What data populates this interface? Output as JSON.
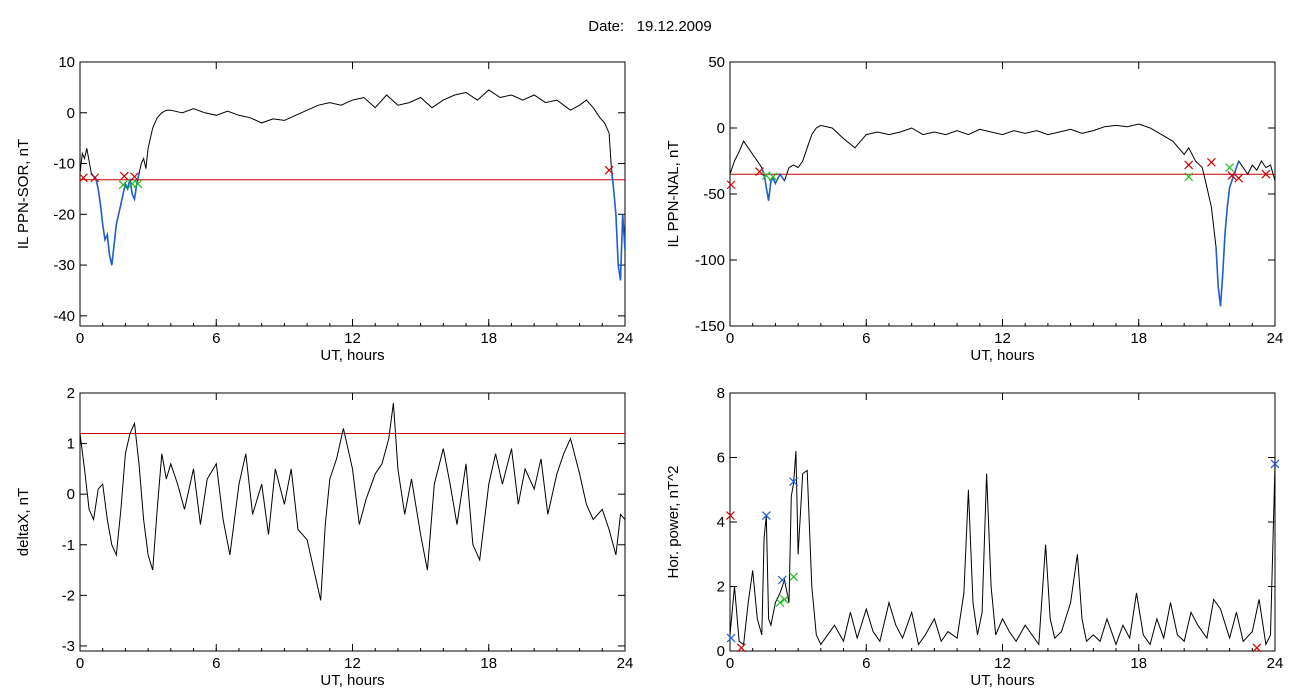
{
  "header": {
    "date_label": "Date:",
    "date_value": "19.12.2009"
  },
  "colors": {
    "trace": "#000000",
    "threshold": "#cc0000",
    "highlight": "#1f5fd0",
    "marker_red": "#cc0000",
    "marker_green": "#22bb22",
    "marker_blue": "#1f5fd0"
  },
  "chart_data": [
    {
      "id": "ppn_sor",
      "type": "line",
      "title": "",
      "xlabel": "UT, hours",
      "ylabel": "IL PPN-SOR, nT",
      "xlim": [
        0,
        24
      ],
      "ylim": [
        -42,
        10
      ],
      "xticks": [
        0,
        6,
        12,
        18,
        24
      ],
      "yticks": [
        10,
        0,
        -10,
        -20,
        -30,
        -40
      ],
      "threshold": -13.2,
      "grid": false,
      "series": [
        {
          "x": [
            0,
            0.1,
            0.2,
            0.3,
            0.5,
            0.7,
            0.8,
            0.9,
            1.0,
            1.1,
            1.2,
            1.3,
            1.4,
            1.5,
            1.6,
            1.7,
            1.8,
            1.9,
            2.0,
            2.1,
            2.2,
            2.3,
            2.4,
            2.5,
            2.6,
            2.7,
            2.8,
            2.9,
            3.0,
            3.2,
            3.4,
            3.6,
            3.8,
            4.0,
            4.5,
            5.0,
            5.5,
            6.0,
            6.5,
            7.0,
            7.5,
            8.0,
            8.5,
            9.0,
            9.5,
            10.0,
            10.5,
            11.0,
            11.5,
            12.0,
            12.5,
            13.0,
            13.5,
            14.0,
            14.5,
            15.0,
            15.5,
            16.0,
            16.5,
            17.0,
            17.5,
            18.0,
            18.5,
            19.0,
            19.5,
            20.0,
            20.5,
            21.0,
            21.3,
            21.6,
            22.0,
            22.3,
            22.6,
            22.9,
            23.1,
            23.3,
            23.4,
            23.5,
            23.6,
            23.7,
            23.8,
            23.9,
            24.0
          ],
          "y": [
            -12,
            -8,
            -9,
            -7,
            -12,
            -13,
            -15,
            -18,
            -22,
            -25,
            -24,
            -28,
            -30,
            -26,
            -22,
            -20,
            -18,
            -16,
            -14,
            -15,
            -13,
            -16,
            -17,
            -14,
            -12,
            -10,
            -9,
            -11,
            -7,
            -3,
            -1,
            0,
            0.5,
            0.5,
            0,
            0.8,
            0,
            -0.5,
            0.3,
            -0.5,
            -1,
            -2,
            -1.2,
            -1.5,
            -0.5,
            0.5,
            1.5,
            2,
            1.5,
            2.5,
            3,
            1,
            3.5,
            1.5,
            2,
            3,
            1,
            2.5,
            3.5,
            4,
            2.5,
            4.5,
            3,
            3.5,
            2.5,
            3.5,
            2,
            2.5,
            1.5,
            0.5,
            1.5,
            2.5,
            1,
            -1,
            -2,
            -4,
            -11,
            -15,
            -20,
            -30,
            -33,
            -20,
            -27
          ]
        }
      ],
      "highlight_segments": [
        [
          0.35,
          2.6
        ],
        [
          23.35,
          24.0
        ]
      ],
      "markers": [
        {
          "x": 0.15,
          "y": -12.8,
          "color": "red"
        },
        {
          "x": 0.65,
          "y": -12.8,
          "color": "red"
        },
        {
          "x": 1.95,
          "y": -12.5,
          "color": "red"
        },
        {
          "x": 2.4,
          "y": -12.6,
          "color": "red"
        },
        {
          "x": 1.9,
          "y": -14.2,
          "color": "green"
        },
        {
          "x": 2.3,
          "y": -14.0,
          "color": "green"
        },
        {
          "x": 2.55,
          "y": -14.0,
          "color": "green"
        },
        {
          "x": 23.3,
          "y": -11.3,
          "color": "red"
        }
      ]
    },
    {
      "id": "ppn_nal",
      "type": "line",
      "title": "",
      "xlabel": "UT, hours",
      "ylabel": "IL PPN-NAL, nT",
      "xlim": [
        0,
        24
      ],
      "ylim": [
        -150,
        50
      ],
      "xticks": [
        0,
        6,
        12,
        18,
        24
      ],
      "yticks": [
        50,
        0,
        -50,
        -100,
        -150
      ],
      "threshold": -35,
      "grid": false,
      "series": [
        {
          "x": [
            0,
            0.2,
            0.4,
            0.6,
            0.8,
            1.0,
            1.2,
            1.4,
            1.5,
            1.6,
            1.7,
            1.8,
            1.9,
            2.0,
            2.2,
            2.4,
            2.6,
            2.8,
            3.0,
            3.2,
            3.4,
            3.6,
            3.8,
            4.0,
            4.5,
            5.0,
            5.5,
            6.0,
            6.5,
            7.0,
            7.5,
            8.0,
            8.5,
            9.0,
            9.5,
            10.0,
            10.5,
            11.0,
            11.5,
            12.0,
            12.5,
            13.0,
            13.5,
            14.0,
            14.5,
            15.0,
            15.5,
            16.0,
            16.5,
            17.0,
            17.5,
            18.0,
            18.5,
            19.0,
            19.5,
            20.0,
            20.2,
            20.5,
            20.8,
            21.0,
            21.2,
            21.4,
            21.5,
            21.6,
            21.7,
            21.8,
            21.9,
            22.0,
            22.2,
            22.4,
            22.6,
            22.8,
            23.0,
            23.2,
            23.4,
            23.6,
            23.8,
            24.0
          ],
          "y": [
            -35,
            -25,
            -18,
            -10,
            -15,
            -20,
            -25,
            -30,
            -35,
            -45,
            -55,
            -40,
            -38,
            -42,
            -35,
            -40,
            -30,
            -28,
            -30,
            -25,
            -15,
            -5,
            0,
            2,
            0,
            -8,
            -15,
            -5,
            -3,
            -5,
            -3,
            0,
            -5,
            -3,
            -5,
            -2,
            -5,
            -1,
            -3,
            -5,
            -2,
            -4,
            -2,
            -5,
            -3,
            -1,
            -4,
            -2,
            1,
            2,
            1,
            3,
            0,
            -5,
            -10,
            -20,
            -15,
            -25,
            -30,
            -45,
            -60,
            -90,
            -120,
            -135,
            -110,
            -80,
            -60,
            -45,
            -35,
            -25,
            -30,
            -35,
            -28,
            -32,
            -25,
            -30,
            -28,
            -40
          ]
        }
      ],
      "highlight_segments": [
        [
          1.3,
          2.5
        ],
        [
          21.3,
          22.4
        ]
      ],
      "markers": [
        {
          "x": 0.05,
          "y": -43,
          "color": "red"
        },
        {
          "x": 1.3,
          "y": -33,
          "color": "red"
        },
        {
          "x": 1.6,
          "y": -36,
          "color": "green"
        },
        {
          "x": 1.9,
          "y": -37,
          "color": "green"
        },
        {
          "x": 20.2,
          "y": -28,
          "color": "red"
        },
        {
          "x": 20.2,
          "y": -37,
          "color": "green"
        },
        {
          "x": 21.2,
          "y": -26,
          "color": "red"
        },
        {
          "x": 22.0,
          "y": -30,
          "color": "green"
        },
        {
          "x": 22.1,
          "y": -36,
          "color": "red"
        },
        {
          "x": 22.4,
          "y": -38,
          "color": "red"
        },
        {
          "x": 23.6,
          "y": -35,
          "color": "red"
        }
      ]
    },
    {
      "id": "delta_x",
      "type": "line",
      "title": "",
      "xlabel": "UT, hours",
      "ylabel": "deltaX, nT",
      "xlim": [
        0,
        24
      ],
      "ylim": [
        -3.1,
        2
      ],
      "xticks": [
        0,
        6,
        12,
        18,
        24
      ],
      "yticks": [
        2,
        1,
        0,
        -1,
        -2,
        -3
      ],
      "threshold": 1.2,
      "grid": false,
      "series": [
        {
          "x": [
            0,
            0.2,
            0.4,
            0.6,
            0.8,
            1.0,
            1.2,
            1.4,
            1.6,
            1.8,
            2.0,
            2.2,
            2.4,
            2.6,
            2.8,
            3.0,
            3.2,
            3.4,
            3.6,
            3.8,
            4.0,
            4.3,
            4.6,
            5.0,
            5.3,
            5.6,
            6.0,
            6.3,
            6.6,
            7.0,
            7.3,
            7.6,
            8.0,
            8.3,
            8.6,
            9.0,
            9.3,
            9.6,
            10.0,
            10.3,
            10.6,
            10.8,
            11.0,
            11.3,
            11.6,
            12.0,
            12.3,
            12.6,
            13.0,
            13.3,
            13.6,
            13.8,
            14.0,
            14.3,
            14.6,
            15.0,
            15.3,
            15.6,
            16.0,
            16.3,
            16.6,
            17.0,
            17.3,
            17.6,
            18.0,
            18.3,
            18.6,
            19.0,
            19.3,
            19.6,
            20.0,
            20.3,
            20.6,
            21.0,
            21.3,
            21.6,
            22.0,
            22.3,
            22.6,
            23.0,
            23.3,
            23.6,
            23.8,
            24.0
          ],
          "y": [
            1.2,
            0.5,
            -0.3,
            -0.5,
            0.1,
            0.2,
            -0.5,
            -1.0,
            -1.2,
            -0.3,
            0.8,
            1.2,
            1.4,
            0.6,
            -0.5,
            -1.2,
            -1.5,
            -0.3,
            0.8,
            0.3,
            0.6,
            0.2,
            -0.3,
            0.5,
            -0.6,
            0.3,
            0.6,
            -0.5,
            -1.2,
            0.2,
            0.8,
            -0.4,
            0.2,
            -0.8,
            0.5,
            -0.2,
            0.5,
            -0.7,
            -0.9,
            -1.5,
            -2.1,
            -0.6,
            0.3,
            0.7,
            1.3,
            0.5,
            -0.6,
            -0.1,
            0.4,
            0.6,
            1.1,
            1.8,
            0.5,
            -0.4,
            0.3,
            -0.8,
            -1.5,
            0.2,
            0.9,
            0.2,
            -0.6,
            0.6,
            -1.0,
            -1.3,
            0.2,
            0.8,
            0.2,
            0.9,
            -0.2,
            0.5,
            0.1,
            0.7,
            -0.4,
            0.4,
            0.8,
            1.1,
            0.4,
            -0.2,
            -0.5,
            -0.3,
            -0.7,
            -1.2,
            -0.4,
            -0.5
          ]
        }
      ],
      "highlight_segments": [],
      "markers": []
    },
    {
      "id": "hor_power",
      "type": "line",
      "title": "",
      "xlabel": "UT, hours",
      "ylabel": "Hor. power, nT^2",
      "xlim": [
        0,
        24
      ],
      "ylim": [
        0,
        8
      ],
      "xticks": [
        0,
        6,
        12,
        18,
        24
      ],
      "yticks": [
        8,
        6,
        4,
        2,
        0
      ],
      "threshold": null,
      "grid": false,
      "series": [
        {
          "x": [
            0,
            0.2,
            0.4,
            0.6,
            0.8,
            1.0,
            1.2,
            1.4,
            1.5,
            1.6,
            1.7,
            1.8,
            2.0,
            2.2,
            2.4,
            2.6,
            2.7,
            2.8,
            2.9,
            3.0,
            3.2,
            3.4,
            3.6,
            3.8,
            4.0,
            4.3,
            4.6,
            5.0,
            5.3,
            5.6,
            6.0,
            6.3,
            6.6,
            7.0,
            7.3,
            7.6,
            8.0,
            8.3,
            8.6,
            9.0,
            9.3,
            9.6,
            10.0,
            10.3,
            10.5,
            10.7,
            10.9,
            11.1,
            11.3,
            11.5,
            11.7,
            12.0,
            12.3,
            12.6,
            13.0,
            13.3,
            13.6,
            13.9,
            14.1,
            14.3,
            14.6,
            15.0,
            15.3,
            15.5,
            15.7,
            16.0,
            16.3,
            16.6,
            17.0,
            17.3,
            17.6,
            17.9,
            18.2,
            18.5,
            18.8,
            19.1,
            19.4,
            19.7,
            20.0,
            20.3,
            20.6,
            21.0,
            21.3,
            21.6,
            22.0,
            22.3,
            22.6,
            23.0,
            23.3,
            23.6,
            23.8,
            24.0
          ],
          "y": [
            0.5,
            2.0,
            0.3,
            0.2,
            1.5,
            2.5,
            1.0,
            0.5,
            3.5,
            4.2,
            1.0,
            0.8,
            1.5,
            1.8,
            2.2,
            1.5,
            4.8,
            5.2,
            6.2,
            3.0,
            5.5,
            5.6,
            2.0,
            0.5,
            0.2,
            0.5,
            0.8,
            0.3,
            1.2,
            0.4,
            1.3,
            0.6,
            0.3,
            1.5,
            0.8,
            0.4,
            1.2,
            0.2,
            0.5,
            1.0,
            0.3,
            0.6,
            0.4,
            1.8,
            5.0,
            1.5,
            0.5,
            1.2,
            5.5,
            2.0,
            0.5,
            1.0,
            0.6,
            0.3,
            0.8,
            0.5,
            0.2,
            3.3,
            1.0,
            0.4,
            0.6,
            1.5,
            3.0,
            1.0,
            0.3,
            0.5,
            0.3,
            1.0,
            0.2,
            0.8,
            0.4,
            1.8,
            0.5,
            0.2,
            1.0,
            0.4,
            1.5,
            0.5,
            0.3,
            1.2,
            0.8,
            0.4,
            1.6,
            1.3,
            0.4,
            1.2,
            0.3,
            0.6,
            1.6,
            0.2,
            0.5,
            5.8
          ]
        }
      ],
      "highlight_segments": [],
      "markers": [
        {
          "x": 0.02,
          "y": 4.2,
          "color": "red"
        },
        {
          "x": 0.05,
          "y": 0.4,
          "color": "blue"
        },
        {
          "x": 0.5,
          "y": 0.1,
          "color": "red"
        },
        {
          "x": 1.6,
          "y": 4.2,
          "color": "blue"
        },
        {
          "x": 2.2,
          "y": 1.5,
          "color": "green"
        },
        {
          "x": 2.4,
          "y": 1.6,
          "color": "green"
        },
        {
          "x": 2.3,
          "y": 2.2,
          "color": "blue"
        },
        {
          "x": 2.8,
          "y": 5.25,
          "color": "blue"
        },
        {
          "x": 2.8,
          "y": 2.3,
          "color": "green"
        },
        {
          "x": 23.2,
          "y": 0.1,
          "color": "red"
        },
        {
          "x": 24.0,
          "y": 5.8,
          "color": "blue"
        }
      ]
    }
  ]
}
